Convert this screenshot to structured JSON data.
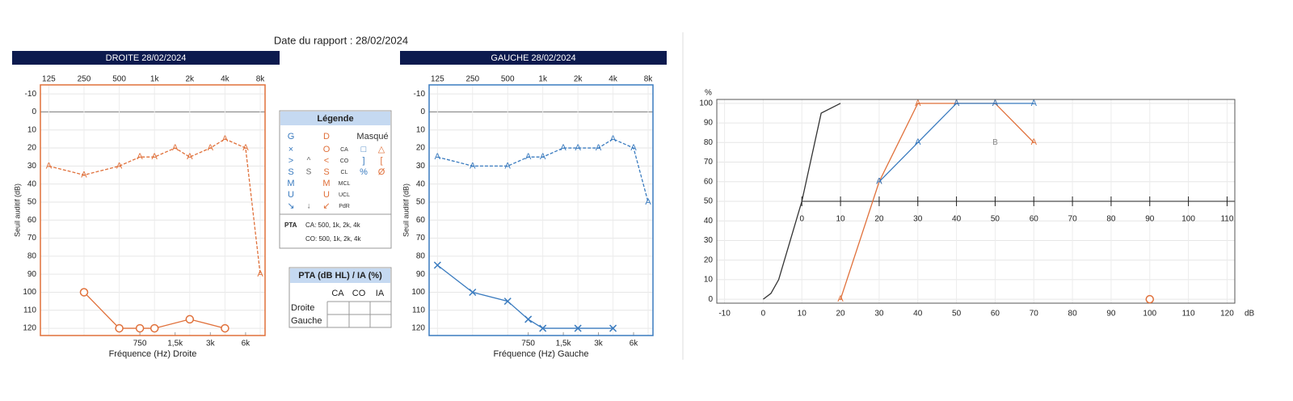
{
  "header": {
    "title": "Date du rapport : 28/02/2024"
  },
  "chart_data": [
    {
      "type": "line",
      "title": "DROITE 28/02/2024",
      "xlabel": "Fréquence (Hz) Droite",
      "ylabel": "Seuil auditif (dB)",
      "color": "#e0703a",
      "xscale": "log",
      "xlim": [
        106,
        8800
      ],
      "xticks": [
        125,
        250,
        500,
        {
          "value": 1000,
          "label": "1k"
        },
        {
          "value": 2000,
          "label": "2k"
        },
        {
          "value": 4000,
          "label": "4k"
        },
        {
          "value": 8000,
          "label": "8k"
        }
      ],
      "xticks_bottom": [
        750,
        {
          "value": 1500,
          "label": "1,5k"
        },
        {
          "value": 3000,
          "label": "3k"
        },
        {
          "value": 6000,
          "label": "6k"
        }
      ],
      "ylim": [
        -15,
        124
      ],
      "y_inverted": true,
      "yticks": [
        -10,
        0,
        10,
        20,
        30,
        40,
        50,
        60,
        70,
        80,
        90,
        100,
        110,
        120
      ],
      "grid": true,
      "series": [
        {
          "marker": "A",
          "color": "#e0703a",
          "x": [
            125,
            250,
            500,
            750,
            1000,
            1500,
            2000,
            3000,
            4000,
            6000,
            8000
          ],
          "values": [
            30,
            35,
            30,
            25,
            25,
            20,
            25,
            20,
            15,
            20,
            90
          ]
        },
        {
          "marker": "circle",
          "color": "#e0703a",
          "x": [
            250,
            500,
            750,
            1000,
            2000,
            4000
          ],
          "values": [
            100,
            120,
            120,
            120,
            115,
            120
          ]
        }
      ]
    },
    {
      "type": "line",
      "title": "GAUCHE 28/02/2024",
      "xlabel": "Fréquence (Hz) Gauche",
      "ylabel": "Seuil auditif (dB)",
      "color": "#3a7bbf",
      "xscale": "log",
      "xlim": [
        106,
        8800
      ],
      "xticks": [
        125,
        250,
        500,
        {
          "value": 1000,
          "label": "1k"
        },
        {
          "value": 2000,
          "label": "2k"
        },
        {
          "value": 4000,
          "label": "4k"
        },
        {
          "value": 8000,
          "label": "8k"
        }
      ],
      "xticks_bottom": [
        750,
        {
          "value": 1500,
          "label": "1,5k"
        },
        {
          "value": 3000,
          "label": "3k"
        },
        {
          "value": 6000,
          "label": "6k"
        }
      ],
      "ylim": [
        -15,
        124
      ],
      "y_inverted": true,
      "yticks": [
        -10,
        0,
        10,
        20,
        30,
        40,
        50,
        60,
        70,
        80,
        90,
        100,
        110,
        120
      ],
      "grid": true,
      "series": [
        {
          "marker": "A",
          "color": "#3a7bbf",
          "x": [
            125,
            250,
            500,
            750,
            1000,
            1500,
            2000,
            3000,
            4000,
            6000,
            8000
          ],
          "values": [
            25,
            30,
            30,
            25,
            25,
            20,
            20,
            20,
            15,
            20,
            50
          ]
        },
        {
          "marker": "cross",
          "color": "#3a7bbf",
          "x": [
            125,
            250,
            500,
            750,
            1000,
            2000,
            4000
          ],
          "values": [
            85,
            100,
            105,
            115,
            120,
            120,
            120
          ]
        }
      ]
    },
    {
      "type": "line",
      "ylabel": "%",
      "xlabel": "dB",
      "color": "#555555",
      "xscale": "linear",
      "xlim": [
        -12,
        122
      ],
      "xticks": [
        -10,
        0,
        10,
        20,
        30,
        40,
        50,
        60,
        70,
        80,
        90,
        100,
        110,
        120
      ],
      "x2lim": [
        -22,
        112
      ],
      "x2ticks": [
        0,
        10,
        20,
        30,
        40,
        50,
        60,
        70,
        80,
        90,
        100,
        110
      ],
      "x2_axis_at": 50,
      "ylim": [
        -2,
        102
      ],
      "yticks": [
        0,
        10,
        20,
        30,
        40,
        50,
        60,
        70,
        80,
        90,
        100
      ],
      "grid": true,
      "series": [
        {
          "color": "#333333",
          "x": [
            0,
            2,
            4,
            10,
            15,
            20
          ],
          "values": [
            0,
            3,
            10,
            50,
            95,
            100
          ]
        },
        {
          "marker": "A",
          "color": "#e0703a",
          "x": [
            20,
            30,
            40,
            50,
            60,
            70
          ],
          "values": [
            0,
            60,
            100,
            100,
            100,
            80
          ]
        },
        {
          "marker": "A",
          "color": "#3a7bbf",
          "x": [
            30,
            40,
            50,
            60,
            70
          ],
          "values": [
            60,
            80,
            100,
            100,
            100
          ]
        },
        {
          "marker": "circle",
          "color": "#e0703a",
          "x": [
            100
          ],
          "values": [
            0
          ]
        }
      ],
      "annotations": [
        {
          "text": "B",
          "x": 60,
          "y": 80
        }
      ]
    }
  ],
  "legend": {
    "title": "Légende",
    "headers": [
      "G",
      "D",
      "Masqué"
    ],
    "rows": [
      {
        "g": "×",
        "d": "O",
        "label": "CA",
        "mg": "□",
        "md": "△"
      },
      {
        "g": ">",
        "m": "^",
        "d": "<",
        "label": "CO",
        "mg": "]",
        "md": "["
      },
      {
        "g": "S",
        "m": "S",
        "d": "S",
        "label": "CL",
        "mg": "%",
        "md": "Ø"
      },
      {
        "g": "M",
        "d": "M",
        "label": "MCL"
      },
      {
        "g": "U",
        "d": "U",
        "label": "UCL"
      },
      {
        "g": "↘",
        "m": "↓",
        "d": "↙",
        "label": "PdR"
      }
    ],
    "pta_label": "PTA",
    "pta_lines": [
      "CA: 500, 1k, 2k, 4k",
      "CO: 500, 1k, 2k, 4k"
    ]
  },
  "pta_table": {
    "title": "PTA (dB HL) / IA (%)",
    "columns": [
      "CA",
      "CO",
      "IA"
    ],
    "rows": [
      "Droite",
      "Gauche"
    ]
  }
}
